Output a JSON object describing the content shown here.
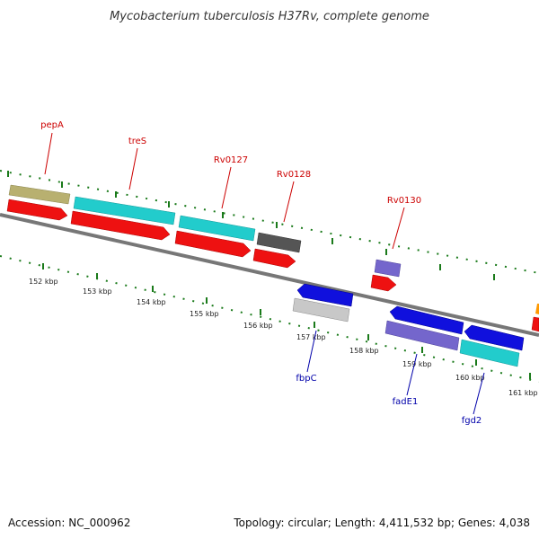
{
  "title": "Mycobacterium tuberculosis H37Rv, complete genome",
  "footer": {
    "accession": "Accession: NC_000962",
    "summary": "Topology: circular; Length: 4,411,532 bp; Genes: 4,038"
  },
  "ticks": [
    "152 kbp",
    "153 kbp",
    "154 kbp",
    "155 kbp",
    "156 kbp",
    "157 kbp",
    "158 kbp",
    "159 kbp",
    "160 kbp",
    "161 kbp"
  ],
  "genes": [
    {
      "name": "pepA",
      "color": "#cc0000"
    },
    {
      "name": "treS",
      "color": "#cc0000"
    },
    {
      "name": "Rv0127",
      "color": "#cc0000"
    },
    {
      "name": "Rv0128",
      "color": "#cc0000"
    },
    {
      "name": "Rv0130",
      "color": "#cc0000"
    },
    {
      "name": "fbpC",
      "color": "#0000aa"
    },
    {
      "name": "fadE1",
      "color": "#0000aa"
    },
    {
      "name": "fgd2",
      "color": "#0000aa"
    }
  ],
  "colors": {
    "cds_forward": "#ee1111",
    "cds_reverse": "#1010dd",
    "olive": "#b8b070",
    "cyan": "#22cccc",
    "gray": "#555555",
    "lavender": "#7466cc",
    "lightgray": "#c8c8c8",
    "backbone": "#888888",
    "dots": "#1a7a1a"
  }
}
